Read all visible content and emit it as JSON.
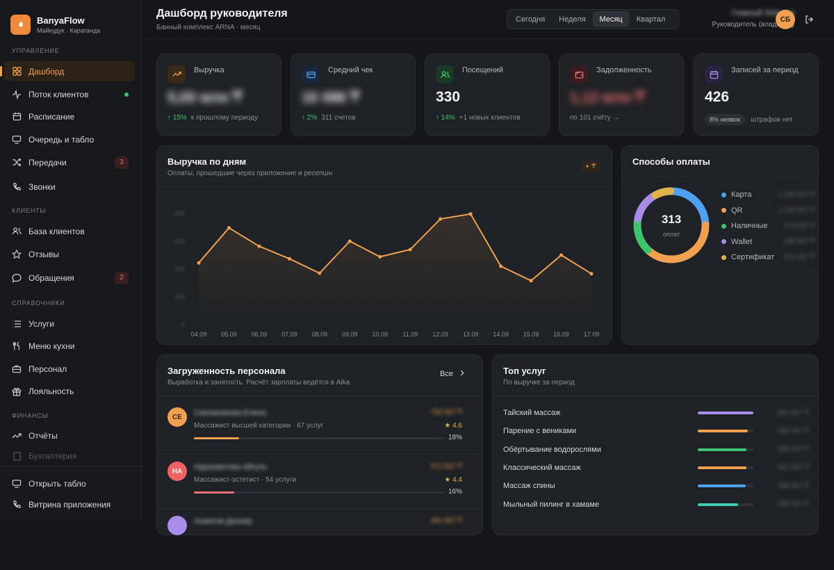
{
  "brand": {
    "name": "BanyaFlow",
    "sub": "Майкудук · Караганда"
  },
  "sidebar": {
    "sections": [
      "УПРАВЛЕНИЕ",
      "КЛИЕНТЫ",
      "СПРАВОЧНИКИ",
      "ФИНАНСЫ"
    ],
    "items": [
      {
        "label": "Дашборд",
        "icon": "grid-icon"
      },
      {
        "label": "Поток клиентов",
        "icon": "activity-icon"
      },
      {
        "label": "Расписание",
        "icon": "calendar-icon"
      },
      {
        "label": "Очередь и табло",
        "icon": "monitor-icon"
      },
      {
        "label": "Передачи",
        "icon": "shuffle-icon",
        "badge": "3"
      },
      {
        "label": "Звонки",
        "icon": "phone-icon"
      },
      {
        "label": "База клиентов",
        "icon": "users-icon"
      },
      {
        "label": "Отзывы",
        "icon": "star-icon"
      },
      {
        "label": "Обращения",
        "icon": "message-icon",
        "badge": "2"
      },
      {
        "label": "Услуги",
        "icon": "list-icon"
      },
      {
        "label": "Меню кухни",
        "icon": "utensils-icon"
      },
      {
        "label": "Персонал",
        "icon": "briefcase-icon"
      },
      {
        "label": "Лояльность",
        "icon": "gift-icon"
      },
      {
        "label": "Отчёты",
        "icon": "trending-icon"
      },
      {
        "label": "Бухгалтерия",
        "icon": "ledger-icon"
      }
    ],
    "bottom": [
      {
        "label": "Открыть табло",
        "icon": "monitor-icon"
      },
      {
        "label": "Витрина приложения",
        "icon": "phone-icon"
      }
    ]
  },
  "header": {
    "title": "Дашборд руководителя",
    "subtitle": "Банный комплекс ARNA · месяц",
    "periods": [
      "Сегодня",
      "Неделя",
      "Месяц",
      "Квартал"
    ],
    "active_period": "Месяц",
    "user_name": "Главный Лобанов",
    "user_role": "Руководитель (владелец)",
    "avatar": "СБ"
  },
  "kpis": [
    {
      "label": "Выручка",
      "value": "5,00 млн ₸",
      "delta": "↑ 15%",
      "note": "к прошлому периоду",
      "icon": "trending-up-icon",
      "color": "#f0a04f",
      "bg": "#3a2a18"
    },
    {
      "label": "Средний чек",
      "value": "16 086 ₸",
      "delta": "↑ 2%",
      "note": "311 счетов",
      "icon": "card-icon",
      "color": "#4ea1f0",
      "bg": "#18283a"
    },
    {
      "label": "Посещений",
      "value": "330",
      "delta": "↑ 14%",
      "note": "+1 новых клиентов",
      "icon": "users-icon",
      "color": "#3ec46d",
      "bg": "#183a26"
    },
    {
      "label": "Задолженность",
      "value": "1,12 млн ₸",
      "delta": "",
      "note": "по 101 счёту →",
      "icon": "wallet-icon",
      "color": "#f07171",
      "bg": "#3a1c1f"
    },
    {
      "label": "Записей за период",
      "value": "426",
      "delta": "",
      "pill": "8% неявок",
      "note": "штрафов нет",
      "icon": "calendar-icon",
      "color": "#a98be8",
      "bg": "#2a2340"
    }
  ],
  "revenue": {
    "title": "Выручка по дням",
    "subtitle": "Оплаты, прошедшие через приложение и ресепшн",
    "badge": "₸"
  },
  "chart_data": {
    "type": "line",
    "title": "Выручка по дням",
    "x": [
      "04.09",
      "05.09",
      "06.09",
      "07.09",
      "08.09",
      "09.09",
      "10.09",
      "11.09",
      "12.09",
      "13.09",
      "14.09",
      "15.09",
      "16.09",
      "17.09"
    ],
    "series": [
      {
        "values": [
          222,
          348,
          282,
          237,
          185,
          300,
          244,
          270,
          380,
          398,
          210,
          158,
          250,
          183
        ]
      }
    ],
    "y_ticks": [
      "0",
      "100",
      "200",
      "300",
      "400"
    ],
    "ylim": [
      0,
      400
    ],
    "color": "#f0a04f"
  },
  "payments": {
    "title": "Способы оплаты",
    "total": "313",
    "total_label": "оплат",
    "items": [
      {
        "label": "Карта",
        "value": "1 234 567 ₸",
        "color": "#4ea1f0",
        "share": 0.25
      },
      {
        "label": "QR",
        "value": "1 234 567 ₸",
        "color": "#f0a04f",
        "share": 0.37
      },
      {
        "label": "Наличные",
        "value": "573 567 ₸",
        "color": "#3ec46d",
        "share": 0.16
      },
      {
        "label": "Wallet",
        "value": "480 567 ₸",
        "color": "#a98be8",
        "share": 0.14
      },
      {
        "label": "Сертификат",
        "value": "371 567 ₸",
        "color": "#e0b34a",
        "share": 0.08
      }
    ]
  },
  "staff": {
    "title": "Загруженность персонала",
    "subtitle": "Выработка и занятость. Расчёт зарплаты ведётся в Aika",
    "all_label": "Все",
    "rows": [
      {
        "initials": "СЕ",
        "name": "Сапожникова Елена",
        "role": "Массажист высшей категории",
        "services": "· 67 услуг",
        "amount": "750 567 ₸",
        "rating": "4.6",
        "pct": "18%",
        "fill": 0.18,
        "color": "#f0a04f"
      },
      {
        "initials": "НА",
        "name": "Нурахметова Айгуль",
        "role": "Массажист-эстетист",
        "services": "· 54 услуги",
        "amount": "572 567 ₸",
        "rating": "4.4",
        "pct": "16%",
        "fill": 0.16,
        "color": "#f07171"
      },
      {
        "initials": "",
        "name": "Ахметов Данияр",
        "role": "",
        "services": "",
        "amount": "461 567 ₸",
        "rating": "",
        "pct": "",
        "fill": 0,
        "color": "#a98be8"
      }
    ]
  },
  "services": {
    "title": "Топ услуг",
    "subtitle": "По выручке за период",
    "rows": [
      {
        "label": "Тайский массаж",
        "amount": "584 567 ₸",
        "fill": 1.0,
        "color": "#a98be8"
      },
      {
        "label": "Парение с вениками",
        "amount": "480 567 ₸",
        "fill": 0.9,
        "color": "#f0a04f"
      },
      {
        "label": "Обёртывание водорослями",
        "amount": "438 567 ₸",
        "fill": 0.88,
        "color": "#3ec46d"
      },
      {
        "label": "Классический массаж",
        "amount": "431 567 ₸",
        "fill": 0.88,
        "color": "#f0a04f"
      },
      {
        "label": "Массаж спины",
        "amount": "398 567 ₸",
        "fill": 0.86,
        "color": "#4ea1f0"
      },
      {
        "label": "Мыльный пилинг в хамаме",
        "amount": "289 567 ₸",
        "fill": 0.72,
        "color": "#3ecbb0"
      }
    ]
  }
}
